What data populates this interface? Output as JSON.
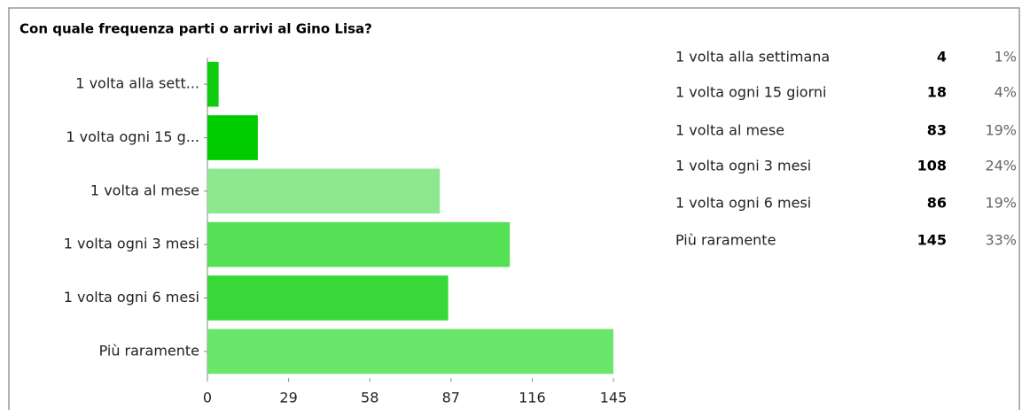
{
  "chart_data": {
    "type": "bar",
    "orientation": "horizontal",
    "title": "Con quale frequenza parti o arrivi al Gino Lisa?",
    "categories": [
      "1 volta alla sett...",
      "1 volta ogni 15 g...",
      "1 volta al mese",
      "1 volta ogni 3 mesi",
      "1 volta ogni 6 mesi",
      "Più raramente"
    ],
    "values": [
      4,
      18,
      83,
      108,
      86,
      145
    ],
    "colors": [
      "#11cc11",
      "#00cc00",
      "#8ce88c",
      "#55e055",
      "#38d838",
      "#6ae66a"
    ],
    "xlim": [
      0,
      145
    ],
    "xticks": [
      0,
      29,
      58,
      87,
      116,
      145
    ],
    "table": {
      "labels": [
        "1 volta alla settimana",
        "1 volta ogni 15 giorni",
        "1 volta al mese",
        "1 volta ogni 3 mesi",
        "1 volta ogni 6 mesi",
        "Più raramente"
      ],
      "percentages": [
        "1%",
        "4%",
        "19%",
        "24%",
        "19%",
        "33%"
      ]
    }
  }
}
